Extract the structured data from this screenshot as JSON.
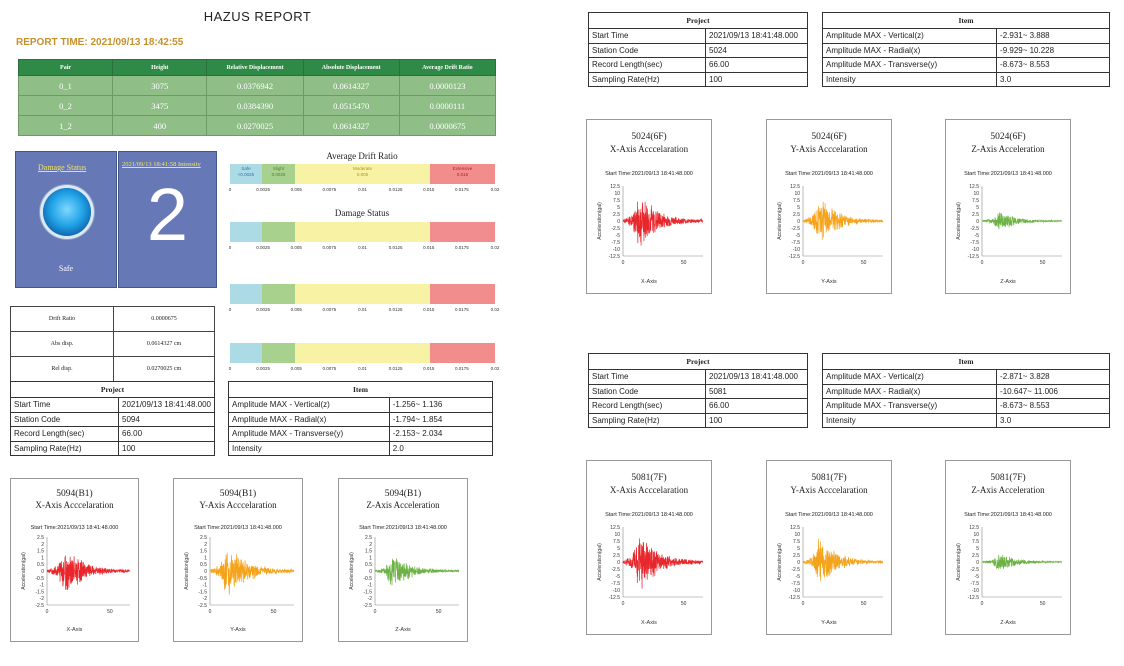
{
  "report": {
    "title": "HAZUS REPORT",
    "time": "REPORT TIME: 2021/09/13 18:42:55"
  },
  "summary_table": {
    "headers": [
      "Pair",
      "Height",
      "Relative Displacement",
      "Absolute Displacement",
      "Average Drift Ratio"
    ],
    "rows": [
      [
        "0_1",
        "3075",
        "0.0376942",
        "0.0614327",
        "0.0000123"
      ],
      [
        "0_2",
        "3475",
        "0.0384390",
        "0.0515470",
        "0.0000111"
      ],
      [
        "1_2",
        "400",
        "0.0270025",
        "0.0614327",
        "0.0000675"
      ]
    ]
  },
  "damage": {
    "status_label": "Damage Status",
    "status_value": "Safe",
    "intensity_label": "2021/09/13 18:41:58 Intensity",
    "intensity_value": "2",
    "orb_color": "#21a3e6"
  },
  "drift": {
    "avg_title": "Average Drift Ratio",
    "status_title": "Damage Status",
    "segments": [
      {
        "name": "Safe",
        "range": "<0.0025",
        "color": "#acdbe6"
      },
      {
        "name": "Slight",
        "range": "0.0025",
        "color": "#a8d18d"
      },
      {
        "name": "Moderate",
        "range": "0.005",
        "color": "#f8f3a4"
      },
      {
        "name": "Extensive",
        "range": "0.015",
        "color": "#f28d8d"
      }
    ],
    "ticks": [
      "0",
      "0.0025",
      "0.005",
      "0.0075",
      "0.01",
      "0.0125",
      "0.015",
      "0.0175",
      "0.02"
    ]
  },
  "info": [
    {
      "label": "Drift Ratio",
      "value": "0.0000675"
    },
    {
      "label": "Abs disp.",
      "value": "0.0614327 cm"
    },
    {
      "label": "Rel disp.",
      "value": "0.0270025 cm"
    }
  ],
  "stations": [
    {
      "project_header": "Project",
      "item_header": "Item",
      "project": [
        [
          "Start Time",
          "2021/09/13 18:41:48.000"
        ],
        [
          "Station Code",
          "5094"
        ],
        [
          "Record Length(sec)",
          "66.00"
        ],
        [
          "Sampling Rate(Hz)",
          "100"
        ]
      ],
      "item": [
        [
          "Amplitude MAX - Vertical(z)",
          "-1.256~ 1.136"
        ],
        [
          "Amplitude MAX - Radial(x)",
          "-1.794~ 1.854"
        ],
        [
          "Amplitude MAX - Transverse(y)",
          "-2.153~ 2.034"
        ],
        [
          "Intensity",
          "2.0"
        ]
      ],
      "charts": [
        {
          "title": "5094(B1)",
          "subtitle": "X-Axis Acccelaration",
          "start": "Start Time:2021/09/13 18:41:48.000",
          "xlabel": "X-Axis",
          "ylabel": "Acceleration(gal)",
          "yticks": [
            "2.5",
            "2",
            "1.5",
            "1",
            "0.5",
            "0",
            "-0.5",
            "-1",
            "-1.5",
            "-2",
            "-2.5"
          ],
          "xticks": [
            "0",
            "50"
          ],
          "color": "#e8262b",
          "amp": 1.8,
          "ymax": 2.5
        },
        {
          "title": "5094(B1)",
          "subtitle": "Y-Axis Acccelaration",
          "start": "Start Time:2021/09/13 18:41:48.000",
          "xlabel": "Y-Axis",
          "ylabel": "Acceleration(gal)",
          "yticks": [
            "2.5",
            "2",
            "1.5",
            "1",
            "0.5",
            "0",
            "-0.5",
            "-1",
            "-1.5",
            "-2",
            "-2.5"
          ],
          "xticks": [
            "0",
            "50"
          ],
          "color": "#f5a31b",
          "amp": 2.1,
          "ymax": 2.5
        },
        {
          "title": "5094(B1)",
          "subtitle": "Z-Axis Acceleration",
          "start": "Start Time:2021/09/13 18:41:48.000",
          "xlabel": "Z-Axis",
          "ylabel": "Acceleration(gal)",
          "yticks": [
            "2.5",
            "2",
            "1.5",
            "1",
            "0.5",
            "0",
            "-0.5",
            "-1",
            "-1.5",
            "-2",
            "-2.5"
          ],
          "xticks": [
            "0",
            "50"
          ],
          "color": "#6cb244",
          "amp": 1.2,
          "ymax": 2.5
        }
      ]
    },
    {
      "project_header": "Project",
      "item_header": "Item",
      "project": [
        [
          "Start Time",
          "2021/09/13 18:41:48.000"
        ],
        [
          "Station Code",
          "5024"
        ],
        [
          "Record Length(sec)",
          "66.00"
        ],
        [
          "Sampling Rate(Hz)",
          "100"
        ]
      ],
      "item": [
        [
          "Amplitude MAX - Vertical(z)",
          "-2.931~ 3.888"
        ],
        [
          "Amplitude MAX - Radial(x)",
          "-9.929~ 10.228"
        ],
        [
          "Amplitude MAX - Transverse(y)",
          "-8.673~ 8.553"
        ],
        [
          "Intensity",
          "3.0"
        ]
      ],
      "charts": [
        {
          "title": "5024(6F)",
          "subtitle": "X-Axis Acccelaration",
          "start": "Start Time:2021/09/13 18:41:48.000",
          "xlabel": "X-Axis",
          "ylabel": "Acceleration(gal)",
          "yticks": [
            "12.5",
            "10",
            "7.5",
            "5",
            "2.5",
            "0",
            "-2.5",
            "-5",
            "-7.5",
            "-10",
            "-12.5"
          ],
          "xticks": [
            "0",
            "50"
          ],
          "color": "#e8262b",
          "amp": 10.2,
          "ymax": 12.5
        },
        {
          "title": "5024(6F)",
          "subtitle": "Y-Axis Acccelaration",
          "start": "Start Time:2021/09/13 18:41:48.000",
          "xlabel": "Y-Axis",
          "ylabel": "Acceleration(gal)",
          "yticks": [
            "12.5",
            "10",
            "7.5",
            "5",
            "2.5",
            "0",
            "-2.5",
            "-5",
            "-7.5",
            "-10",
            "-12.5"
          ],
          "xticks": [
            "0",
            "50"
          ],
          "color": "#f5a31b",
          "amp": 8.6,
          "ymax": 12.5
        },
        {
          "title": "5024(6F)",
          "subtitle": "Z-Axis Acceleration",
          "start": "Start Time:2021/09/13 18:41:48.000",
          "xlabel": "Z-Axis",
          "ylabel": "Acceleration(gal)",
          "yticks": [
            "12.5",
            "10",
            "7.5",
            "5",
            "2.5",
            "0",
            "-2.5",
            "-5",
            "-7.5",
            "-10",
            "-12.5"
          ],
          "xticks": [
            "0",
            "50"
          ],
          "color": "#6cb244",
          "amp": 3.5,
          "ymax": 12.5
        }
      ]
    },
    {
      "project_header": "Project",
      "item_header": "Item",
      "project": [
        [
          "Start Time",
          "2021/09/13 18:41:48.000"
        ],
        [
          "Station Code",
          "5081"
        ],
        [
          "Record Length(sec)",
          "66.00"
        ],
        [
          "Sampling Rate(Hz)",
          "100"
        ]
      ],
      "item": [
        [
          "Amplitude MAX - Vertical(z)",
          "-2.871~ 3.828"
        ],
        [
          "Amplitude MAX - Radial(x)",
          "-10.647~ 11.006"
        ],
        [
          "Amplitude MAX - Transverse(y)",
          "-8.673~ 8.553"
        ],
        [
          "Intensity",
          "3.0"
        ]
      ],
      "charts": [
        {
          "title": "5081(7F)",
          "subtitle": "X-Axis Acccelaration",
          "start": "Start Time:2021/09/13 18:41:48.000",
          "xlabel": "X-Axis",
          "ylabel": "Acceleration(gal)",
          "yticks": [
            "12.5",
            "10",
            "7.5",
            "5",
            "2.5",
            "0",
            "-2.5",
            "-5",
            "-7.5",
            "-10",
            "-12.5"
          ],
          "xticks": [
            "0",
            "50"
          ],
          "color": "#e8262b",
          "amp": 10.8,
          "ymax": 12.5
        },
        {
          "title": "5081(7F)",
          "subtitle": "Y-Axis Acccelaration",
          "start": "Start Time:2021/09/13 18:41:48.000",
          "xlabel": "Y-Axis",
          "ylabel": "Acceleration(gal)",
          "yticks": [
            "12.5",
            "10",
            "7.5",
            "5",
            "2.5",
            "0",
            "-2.5",
            "-5",
            "-7.5",
            "-10",
            "-12.5"
          ],
          "xticks": [
            "0",
            "50"
          ],
          "color": "#f5a31b",
          "amp": 8.6,
          "ymax": 12.5
        },
        {
          "title": "5081(7F)",
          "subtitle": "Z-Axis Acceleration",
          "start": "Start Time:2021/09/13 18:41:48.000",
          "xlabel": "Z-Axis",
          "ylabel": "Acceleration(gal)",
          "yticks": [
            "12.5",
            "10",
            "7.5",
            "5",
            "2.5",
            "0",
            "-2.5",
            "-5",
            "-7.5",
            "-10",
            "-12.5"
          ],
          "xticks": [
            "0",
            "50"
          ],
          "color": "#6cb244",
          "amp": 3.4,
          "ymax": 12.5
        }
      ]
    }
  ]
}
